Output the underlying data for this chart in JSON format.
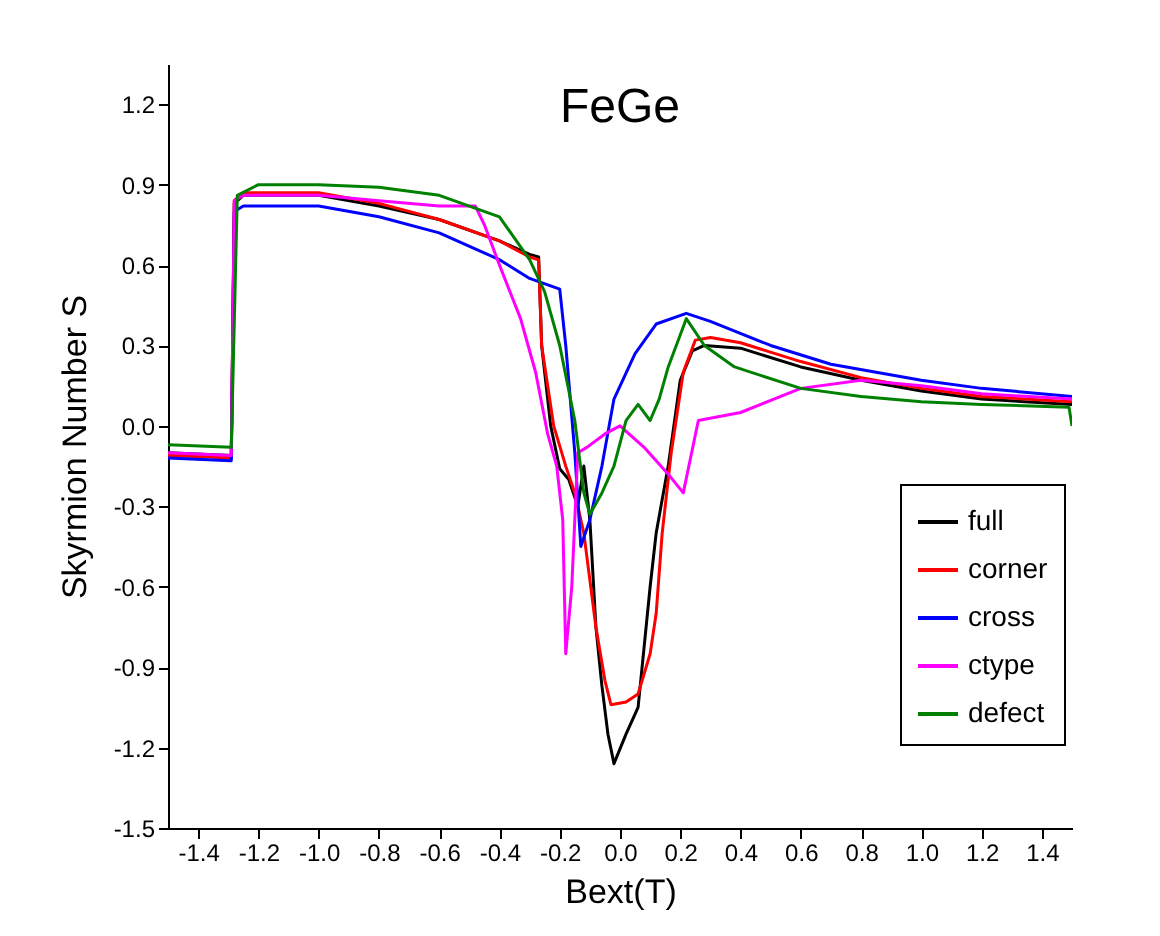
{
  "chart_data": {
    "type": "line",
    "title": "FeGe",
    "xlabel": "Bext(T)",
    "ylabel": "Skyrmion Number S",
    "xlim": [
      -1.5,
      1.5
    ],
    "ylim": [
      -1.5,
      1.35
    ],
    "xticks": [
      -1.4,
      -1.2,
      {
        "value": -1,
        "label": "-1.0"
      },
      -0.8,
      -0.6,
      -0.4,
      -0.2,
      {
        "value": 0,
        "label": "0.0"
      },
      0.2,
      0.4,
      0.6,
      0.8,
      {
        "value": 1,
        "label": "1.0"
      },
      1.2,
      1.4
    ],
    "yticks": [
      -1.5,
      -1.2,
      -0.9,
      -0.6,
      -0.3,
      {
        "value": 0,
        "label": "0.0"
      },
      0.3,
      0.6,
      0.9,
      1.2
    ],
    "grid": false,
    "legend": "bottom right",
    "marker": "none",
    "line_style": "solid",
    "series": [
      {
        "name": "full",
        "color": "#000000",
        "x": [
          -1.5,
          -1.29,
          -1.28,
          -1.25,
          -1.0,
          -0.8,
          -0.6,
          -0.4,
          -0.3,
          -0.27,
          -0.26,
          -0.23,
          -0.2,
          -0.17,
          -0.14,
          -0.12,
          -0.1,
          -0.08,
          -0.06,
          -0.04,
          -0.02,
          0.02,
          0.06,
          0.1,
          0.12,
          0.16,
          0.2,
          0.24,
          0.28,
          0.4,
          0.6,
          0.8,
          1.0,
          1.2,
          1.5
        ],
        "values": [
          -0.1,
          -0.11,
          0.83,
          0.86,
          0.86,
          0.82,
          0.77,
          0.69,
          0.64,
          0.63,
          0.3,
          0.0,
          -0.16,
          -0.2,
          -0.3,
          -0.15,
          -0.35,
          -0.75,
          -0.97,
          -1.15,
          -1.26,
          -1.15,
          -1.05,
          -0.6,
          -0.4,
          -0.15,
          0.17,
          0.28,
          0.3,
          0.29,
          0.22,
          0.17,
          0.13,
          0.1,
          0.08
        ]
      },
      {
        "name": "corner",
        "color": "#ff0000",
        "x": [
          -1.5,
          -1.29,
          -1.28,
          -1.25,
          -1.0,
          -0.8,
          -0.6,
          -0.4,
          -0.3,
          -0.27,
          -0.26,
          -0.22,
          -0.18,
          -0.15,
          -0.12,
          -0.08,
          -0.05,
          -0.03,
          0.02,
          0.06,
          0.1,
          0.12,
          0.14,
          0.17,
          0.21,
          0.25,
          0.3,
          0.4,
          0.6,
          0.8,
          1.0,
          1.2,
          1.5
        ],
        "values": [
          -0.11,
          -0.12,
          0.84,
          0.87,
          0.87,
          0.83,
          0.77,
          0.69,
          0.63,
          0.62,
          0.3,
          0.0,
          -0.15,
          -0.25,
          -0.4,
          -0.75,
          -0.95,
          -1.04,
          -1.03,
          -1.0,
          -0.85,
          -0.7,
          -0.4,
          -0.1,
          0.2,
          0.32,
          0.33,
          0.31,
          0.24,
          0.18,
          0.14,
          0.11,
          0.09
        ]
      },
      {
        "name": "cross",
        "color": "#0000ff",
        "x": [
          -1.5,
          -1.29,
          -1.28,
          -1.25,
          -1.0,
          -0.8,
          -0.6,
          -0.4,
          -0.3,
          -0.2,
          -0.18,
          -0.15,
          -0.13,
          -0.1,
          -0.06,
          -0.02,
          0.05,
          0.12,
          0.22,
          0.3,
          0.5,
          0.7,
          1.0,
          1.2,
          1.5
        ],
        "values": [
          -0.12,
          -0.13,
          0.8,
          0.82,
          0.82,
          0.78,
          0.72,
          0.62,
          0.55,
          0.51,
          0.3,
          -0.1,
          -0.45,
          -0.35,
          -0.15,
          0.1,
          0.27,
          0.38,
          0.42,
          0.39,
          0.3,
          0.23,
          0.17,
          0.14,
          0.11
        ]
      },
      {
        "name": "ctype",
        "color": "#ff00ff",
        "x": [
          -1.5,
          -1.29,
          -1.28,
          -1.25,
          -1.0,
          -0.8,
          -0.6,
          -0.48,
          -0.45,
          -0.4,
          -0.33,
          -0.28,
          -0.24,
          -0.21,
          -0.19,
          -0.18,
          -0.16,
          -0.14,
          -0.11,
          -0.05,
          0.0,
          0.08,
          0.16,
          0.21,
          0.26,
          0.4,
          0.6,
          0.8,
          1.0,
          1.2,
          1.5
        ],
        "values": [
          -0.1,
          -0.11,
          0.84,
          0.86,
          0.86,
          0.84,
          0.82,
          0.82,
          0.75,
          0.6,
          0.4,
          0.2,
          -0.03,
          -0.15,
          -0.35,
          -0.85,
          -0.6,
          -0.1,
          -0.08,
          -0.03,
          0.0,
          -0.08,
          -0.18,
          -0.25,
          0.02,
          0.05,
          0.14,
          0.17,
          0.15,
          0.12,
          0.1
        ]
      },
      {
        "name": "defect",
        "color": "#008000",
        "x": [
          -1.5,
          -1.29,
          -1.27,
          -1.2,
          -1.0,
          -0.8,
          -0.6,
          -0.4,
          -0.3,
          -0.25,
          -0.2,
          -0.15,
          -0.12,
          -0.1,
          -0.06,
          -0.02,
          0.02,
          0.06,
          0.1,
          0.13,
          0.16,
          0.22,
          0.28,
          0.38,
          0.6,
          0.8,
          1.0,
          1.2,
          1.49,
          1.5
        ],
        "values": [
          -0.07,
          -0.08,
          0.86,
          0.9,
          0.9,
          0.89,
          0.86,
          0.78,
          0.62,
          0.5,
          0.3,
          0.02,
          -0.25,
          -0.33,
          -0.25,
          -0.15,
          0.02,
          0.08,
          0.02,
          0.1,
          0.22,
          0.4,
          0.3,
          0.22,
          0.14,
          0.11,
          0.09,
          0.08,
          0.07,
          0.0
        ]
      }
    ]
  }
}
